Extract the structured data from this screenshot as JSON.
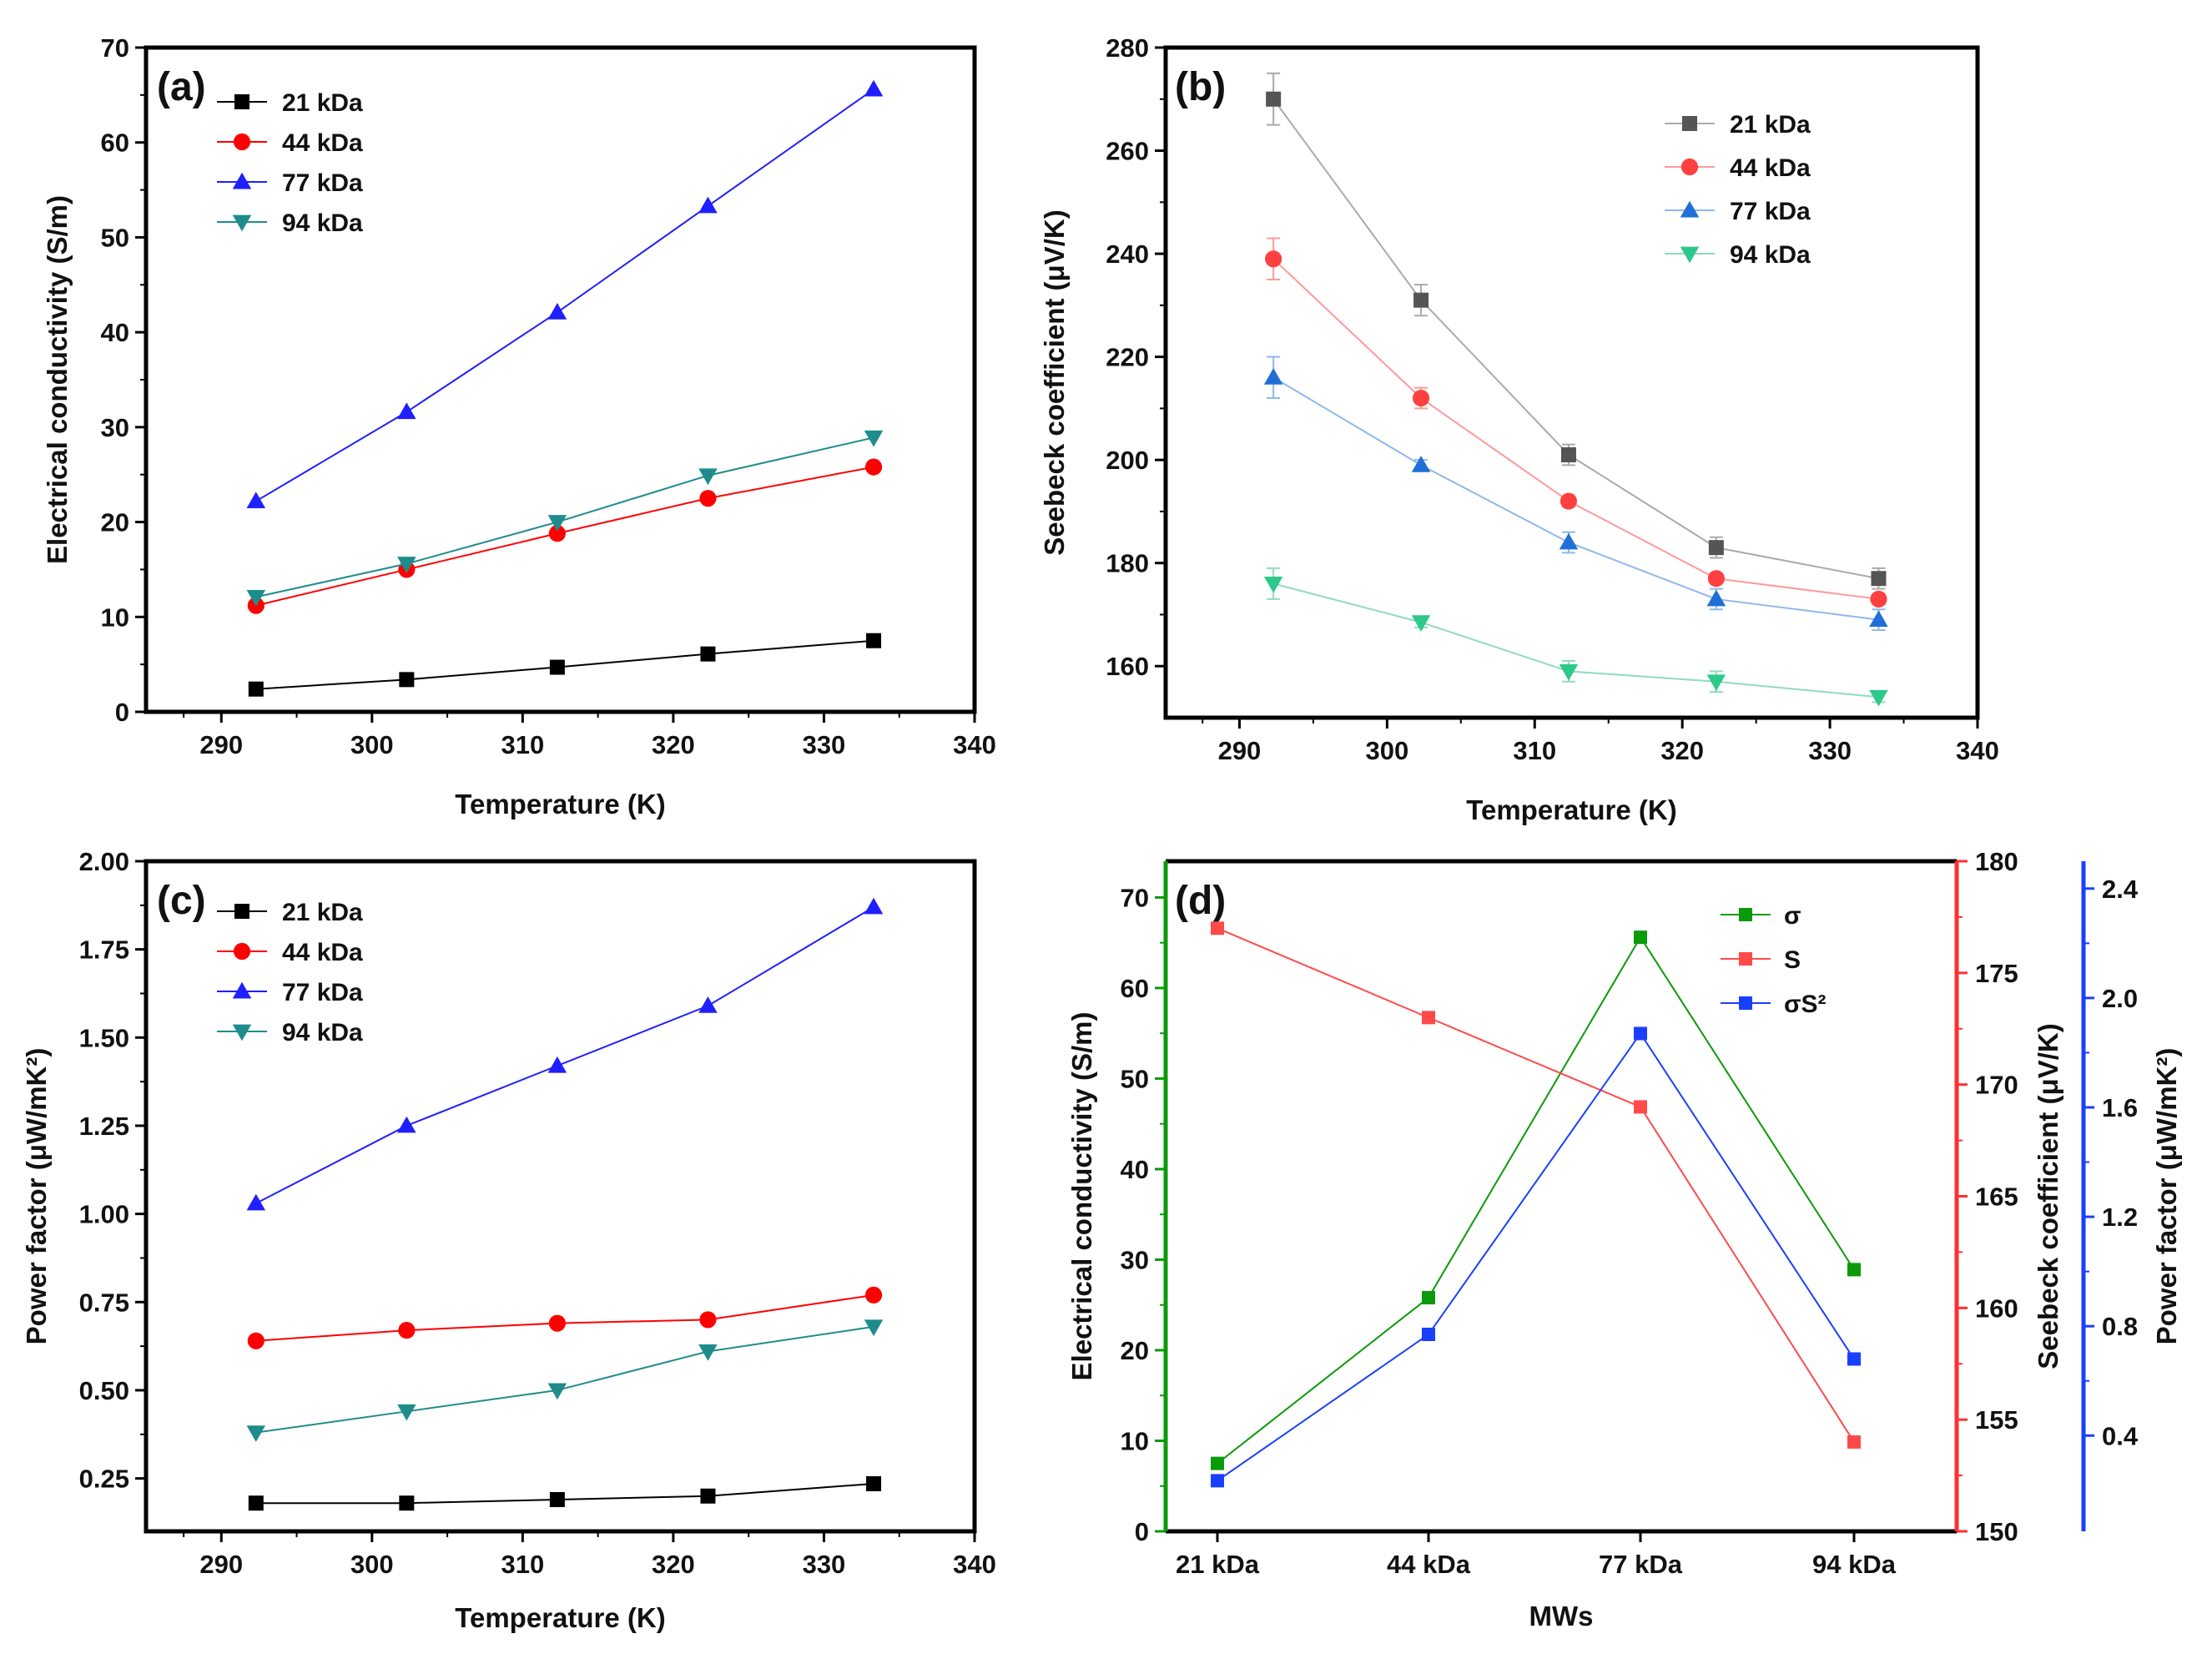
{
  "chart_data": [
    {
      "panel": "(a)",
      "type": "line",
      "xlabel": "Temperature (K)",
      "ylabel": "Electrical conductivity (S/m)",
      "xlim": [
        285,
        340
      ],
      "ylim": [
        0,
        70
      ],
      "xticks": [
        290,
        300,
        310,
        320,
        330,
        340
      ],
      "yticks": [
        0,
        10,
        20,
        30,
        40,
        50,
        60,
        70
      ],
      "x": [
        292.3,
        302.3,
        312.3,
        322.3,
        333.3
      ],
      "series": [
        {
          "name": "21 kDa",
          "marker": "square",
          "color": "#000000",
          "values": [
            2.4,
            3.4,
            4.7,
            6.1,
            7.5
          ]
        },
        {
          "name": "44 kDa",
          "marker": "circle",
          "color": "#ff0000",
          "values": [
            11.2,
            15.0,
            18.8,
            22.5,
            25.8
          ]
        },
        {
          "name": "77 kDa",
          "marker": "triangle-up",
          "color": "#1f1fff",
          "values": [
            22.2,
            31.6,
            42.1,
            53.3,
            65.6
          ]
        },
        {
          "name": "94 kDa",
          "marker": "triangle-down",
          "color": "#1e8c8c",
          "values": [
            12.1,
            15.6,
            20.0,
            24.9,
            28.9
          ]
        }
      ]
    },
    {
      "panel": "(b)",
      "type": "line",
      "xlabel": "Temperature (K)",
      "ylabel": "Seebeck coefficient (μV/K)",
      "xlim": [
        285,
        340
      ],
      "ylim": [
        150,
        280
      ],
      "xticks": [
        290,
        300,
        310,
        320,
        330,
        340
      ],
      "yticks": [
        160,
        180,
        200,
        220,
        240,
        260,
        280
      ],
      "x": [
        292.3,
        302.3,
        312.3,
        322.3,
        333.3
      ],
      "series": [
        {
          "name": "21 kDa",
          "marker": "square",
          "color": "#555555",
          "line_color": "#aaaaaa",
          "values": [
            270,
            231,
            201,
            183,
            177
          ],
          "errors": [
            5,
            3,
            2,
            2,
            2
          ]
        },
        {
          "name": "44 kDa",
          "marker": "circle",
          "color": "#ff4040",
          "line_color": "#ff9999",
          "values": [
            239,
            212,
            192,
            177,
            173
          ],
          "errors": [
            4,
            2,
            1,
            1,
            1
          ]
        },
        {
          "name": "77 kDa",
          "marker": "triangle-up",
          "color": "#1f6fd6",
          "line_color": "#8fb8ea",
          "values": [
            216,
            199,
            184,
            173,
            169
          ],
          "errors": [
            4,
            1,
            2,
            2,
            2
          ]
        },
        {
          "name": "94 kDa",
          "marker": "triangle-down",
          "color": "#2cc98a",
          "line_color": "#8fdcbc",
          "values": [
            176,
            168.5,
            159,
            157,
            154
          ],
          "errors": [
            3,
            1,
            2,
            2,
            1
          ]
        }
      ]
    },
    {
      "panel": "(c)",
      "type": "line",
      "xlabel": "Temperature (K)",
      "ylabel": "Power factor (μW/mK²)",
      "xlim": [
        285,
        340
      ],
      "ylim": [
        0.1,
        2.0
      ],
      "xticks": [
        290,
        300,
        310,
        320,
        330,
        340
      ],
      "yticks": [
        0.25,
        0.5,
        0.75,
        1.0,
        1.25,
        1.5,
        1.75,
        2.0
      ],
      "ytick_labels": [
        "0.25",
        "0.50",
        "0.75",
        "1.00",
        "1.25",
        "1.50",
        "1.75",
        "2.00"
      ],
      "x": [
        292.3,
        302.3,
        312.3,
        322.3,
        333.3
      ],
      "series": [
        {
          "name": "21 kDa",
          "marker": "square",
          "color": "#000000",
          "values": [
            0.18,
            0.18,
            0.19,
            0.2,
            0.235
          ]
        },
        {
          "name": "44 kDa",
          "marker": "circle",
          "color": "#ff0000",
          "values": [
            0.64,
            0.67,
            0.69,
            0.7,
            0.77
          ]
        },
        {
          "name": "77 kDa",
          "marker": "triangle-up",
          "color": "#1f1fff",
          "values": [
            1.03,
            1.25,
            1.42,
            1.59,
            1.87
          ]
        },
        {
          "name": "94 kDa",
          "marker": "triangle-down",
          "color": "#1e8c8c",
          "values": [
            0.38,
            0.44,
            0.5,
            0.61,
            0.68
          ]
        }
      ]
    },
    {
      "panel": "(d)",
      "type": "line",
      "xlabel": "MWs",
      "categories": [
        "21 kDa",
        "44 kDa",
        "77 kDa",
        "94 kDa"
      ],
      "axes": [
        {
          "side": "left",
          "label": "Electrical conductivity (S/m)",
          "color": "#0a9a0a",
          "ylim": [
            0,
            74
          ],
          "ticks": [
            0,
            10,
            20,
            30,
            40,
            50,
            60,
            70
          ]
        },
        {
          "side": "right",
          "label": "Seebeck coefficient (μV/K)",
          "color": "#ff3030",
          "ylim": [
            150,
            180
          ],
          "ticks": [
            150,
            155,
            160,
            165,
            170,
            175,
            180
          ]
        },
        {
          "side": "right-outer",
          "label": "Power factor (μW/mK²)",
          "color": "#1a3fff",
          "ylim": [
            0.05,
            2.5
          ],
          "ticks": [
            0.4,
            0.8,
            1.2,
            1.6,
            2.0,
            2.4
          ],
          "tick_labels": [
            "0.4",
            "0.8",
            "1.2",
            "1.6",
            "2.0",
            "2.4"
          ]
        }
      ],
      "series": [
        {
          "name": "σ",
          "axis": 0,
          "marker": "square",
          "color": "#0a9a0a",
          "values": [
            7.5,
            25.8,
            65.6,
            28.9
          ]
        },
        {
          "name": "S",
          "axis": 1,
          "marker": "square",
          "color": "#ff4a4a",
          "values": [
            177,
            173,
            169,
            154
          ]
        },
        {
          "name": "σS²",
          "axis": 2,
          "marker": "square",
          "color": "#1a3fff",
          "values": [
            0.235,
            0.77,
            1.87,
            0.68
          ]
        }
      ]
    }
  ]
}
